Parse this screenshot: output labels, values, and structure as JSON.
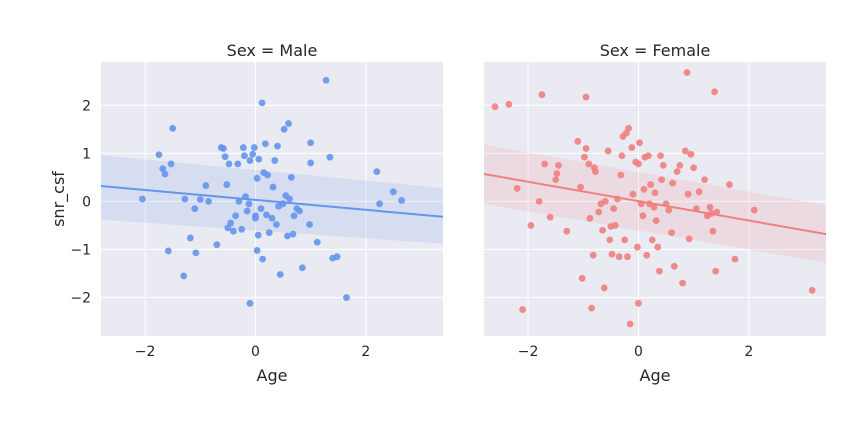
{
  "colors": {
    "background": "#eaeaf2",
    "grid": "#ffffff",
    "male": "#6495ed",
    "female": "#f08080"
  },
  "chart_data": {
    "type": "scatter",
    "ylabel": "snr_csf",
    "xlim": [
      -2.8,
      3.4
    ],
    "ylim": [
      -2.8,
      2.9
    ],
    "xticks": [
      -2,
      0,
      2
    ],
    "yticks": [
      -2,
      -1,
      0,
      1,
      2
    ],
    "panels": [
      {
        "title": "Sex = Male",
        "xlabel": "Age",
        "regression": {
          "x": [
            -2.8,
            3.4
          ],
          "y": [
            0.32,
            -0.32
          ],
          "ci_lower": [
            -0.38,
            -0.88
          ],
          "ci_upper": [
            0.96,
            0.28
          ]
        },
        "points": [
          [
            -2.05,
            0.05
          ],
          [
            -1.75,
            0.97
          ],
          [
            -1.68,
            0.68
          ],
          [
            -1.64,
            0.57
          ],
          [
            -1.58,
            -1.03
          ],
          [
            -1.53,
            0.78
          ],
          [
            -1.5,
            1.52
          ],
          [
            -1.3,
            -1.55
          ],
          [
            -1.28,
            0.05
          ],
          [
            -1.18,
            -0.76
          ],
          [
            -1.1,
            -0.15
          ],
          [
            -1.08,
            -1.07
          ],
          [
            -1.0,
            0.04
          ],
          [
            -0.9,
            0.33
          ],
          [
            -0.85,
            0.0
          ],
          [
            -0.7,
            -0.9
          ],
          [
            -0.62,
            1.12
          ],
          [
            -0.58,
            1.1
          ],
          [
            -0.55,
            0.93
          ],
          [
            -0.52,
            0.35
          ],
          [
            -0.5,
            -0.55
          ],
          [
            -0.48,
            0.78
          ],
          [
            -0.45,
            -0.45
          ],
          [
            -0.4,
            -0.62
          ],
          [
            -0.36,
            -0.3
          ],
          [
            -0.32,
            0.78
          ],
          [
            -0.3,
            0.0
          ],
          [
            -0.25,
            -0.58
          ],
          [
            -0.22,
            1.12
          ],
          [
            -0.2,
            0.95
          ],
          [
            -0.18,
            0.1
          ],
          [
            -0.15,
            -0.2
          ],
          [
            -0.12,
            -0.05
          ],
          [
            -0.1,
            0.85
          ],
          [
            -0.1,
            -2.12
          ],
          [
            -0.05,
            0.98
          ],
          [
            -0.02,
            1.12
          ],
          [
            0.0,
            -0.3
          ],
          [
            0.0,
            -0.35
          ],
          [
            0.03,
            -1.02
          ],
          [
            0.03,
            0.48
          ],
          [
            0.05,
            -0.7
          ],
          [
            0.06,
            0.88
          ],
          [
            0.1,
            -0.15
          ],
          [
            0.12,
            2.05
          ],
          [
            0.13,
            -1.2
          ],
          [
            0.15,
            0.6
          ],
          [
            0.18,
            1.2
          ],
          [
            0.2,
            -0.28
          ],
          [
            0.22,
            0.55
          ],
          [
            0.25,
            -0.65
          ],
          [
            0.3,
            -0.35
          ],
          [
            0.32,
            0.3
          ],
          [
            0.35,
            0.85
          ],
          [
            0.38,
            -0.48
          ],
          [
            0.4,
            1.15
          ],
          [
            0.42,
            -0.1
          ],
          [
            0.45,
            -1.52
          ],
          [
            0.5,
            -0.05
          ],
          [
            0.52,
            1.5
          ],
          [
            0.55,
            0.12
          ],
          [
            0.58,
            -0.72
          ],
          [
            0.6,
            1.62
          ],
          [
            0.62,
            0.05
          ],
          [
            0.65,
            0.5
          ],
          [
            0.68,
            -0.68
          ],
          [
            0.7,
            -0.3
          ],
          [
            0.75,
            -0.15
          ],
          [
            0.8,
            -0.2
          ],
          [
            0.85,
            -1.38
          ],
          [
            0.98,
            -0.48
          ],
          [
            1.0,
            1.22
          ],
          [
            1.0,
            0.8
          ],
          [
            1.12,
            -0.85
          ],
          [
            1.28,
            2.52
          ],
          [
            1.35,
            0.92
          ],
          [
            1.4,
            -1.18
          ],
          [
            1.48,
            -1.15
          ],
          [
            1.65,
            -2.0
          ],
          [
            2.2,
            0.62
          ],
          [
            2.25,
            -0.05
          ],
          [
            2.5,
            0.2
          ],
          [
            2.65,
            0.02
          ]
        ]
      },
      {
        "title": "Sex = Female",
        "xlabel": "Age",
        "regression": {
          "x": [
            -2.8,
            3.4
          ],
          "y": [
            0.57,
            -0.68
          ],
          "ci_lower": [
            -0.05,
            -1.28
          ],
          "ci_upper": [
            1.18,
            -0.08
          ]
        },
        "points": [
          [
            -2.6,
            1.97
          ],
          [
            -2.35,
            2.02
          ],
          [
            -2.2,
            0.27
          ],
          [
            -2.1,
            -2.25
          ],
          [
            -1.95,
            -0.5
          ],
          [
            -1.8,
            0.0
          ],
          [
            -1.75,
            2.22
          ],
          [
            -1.7,
            0.78
          ],
          [
            -1.6,
            -0.33
          ],
          [
            -1.5,
            0.45
          ],
          [
            -1.48,
            0.58
          ],
          [
            -1.45,
            0.75
          ],
          [
            -1.3,
            -0.62
          ],
          [
            -1.1,
            1.25
          ],
          [
            -1.05,
            0.3
          ],
          [
            -1.02,
            -1.6
          ],
          [
            -0.98,
            0.92
          ],
          [
            -0.95,
            1.1
          ],
          [
            -0.95,
            2.17
          ],
          [
            -0.9,
            0.78
          ],
          [
            -0.88,
            -0.35
          ],
          [
            -0.85,
            -2.22
          ],
          [
            -0.82,
            -1.12
          ],
          [
            -0.8,
            0.7
          ],
          [
            -0.78,
            0.62
          ],
          [
            -0.72,
            -0.22
          ],
          [
            -0.68,
            -0.05
          ],
          [
            -0.65,
            -0.6
          ],
          [
            -0.62,
            -1.8
          ],
          [
            -0.6,
            0.0
          ],
          [
            -0.55,
            1.05
          ],
          [
            -0.52,
            -0.8
          ],
          [
            -0.5,
            -0.52
          ],
          [
            -0.48,
            -1.1
          ],
          [
            -0.45,
            -0.15
          ],
          [
            -0.42,
            -0.5
          ],
          [
            -0.38,
            0.05
          ],
          [
            -0.35,
            -1.15
          ],
          [
            -0.32,
            0.55
          ],
          [
            -0.3,
            0.95
          ],
          [
            -0.28,
            1.35
          ],
          [
            -0.25,
            -0.8
          ],
          [
            -0.22,
            1.42
          ],
          [
            -0.2,
            -1.15
          ],
          [
            -0.18,
            1.52
          ],
          [
            -0.15,
            -2.55
          ],
          [
            -0.12,
            1.12
          ],
          [
            -0.1,
            0.15
          ],
          [
            -0.05,
            0.82
          ],
          [
            -0.02,
            -0.95
          ],
          [
            0.0,
            0.78
          ],
          [
            0.0,
            -2.12
          ],
          [
            0.02,
            1.22
          ],
          [
            0.05,
            -0.05
          ],
          [
            0.08,
            -0.3
          ],
          [
            0.1,
            0.25
          ],
          [
            0.12,
            0.92
          ],
          [
            0.15,
            -1.12
          ],
          [
            0.18,
            0.95
          ],
          [
            0.2,
            -0.05
          ],
          [
            0.22,
            0.35
          ],
          [
            0.25,
            -0.8
          ],
          [
            0.28,
            -0.12
          ],
          [
            0.3,
            0.18
          ],
          [
            0.32,
            -0.4
          ],
          [
            0.35,
            -0.95
          ],
          [
            0.38,
            -1.45
          ],
          [
            0.4,
            0.95
          ],
          [
            0.42,
            0.45
          ],
          [
            0.45,
            0.75
          ],
          [
            0.5,
            -0.05
          ],
          [
            0.55,
            -0.18
          ],
          [
            0.6,
            -0.65
          ],
          [
            0.62,
            0.38
          ],
          [
            0.65,
            -1.35
          ],
          [
            0.7,
            0.62
          ],
          [
            0.75,
            0.75
          ],
          [
            0.8,
            -1.7
          ],
          [
            0.85,
            1.05
          ],
          [
            0.88,
            2.68
          ],
          [
            0.9,
            0.15
          ],
          [
            0.92,
            -0.78
          ],
          [
            0.95,
            0.98
          ],
          [
            1.0,
            0.7
          ],
          [
            1.05,
            -0.15
          ],
          [
            1.1,
            0.2
          ],
          [
            1.2,
            0.45
          ],
          [
            1.25,
            -0.3
          ],
          [
            1.3,
            -0.12
          ],
          [
            1.32,
            -0.25
          ],
          [
            1.35,
            -0.62
          ],
          [
            1.38,
            2.28
          ],
          [
            1.4,
            -1.45
          ],
          [
            1.42,
            -0.22
          ],
          [
            1.65,
            0.35
          ],
          [
            1.75,
            -1.2
          ],
          [
            2.1,
            -0.18
          ],
          [
            3.15,
            -1.85
          ]
        ]
      }
    ]
  }
}
